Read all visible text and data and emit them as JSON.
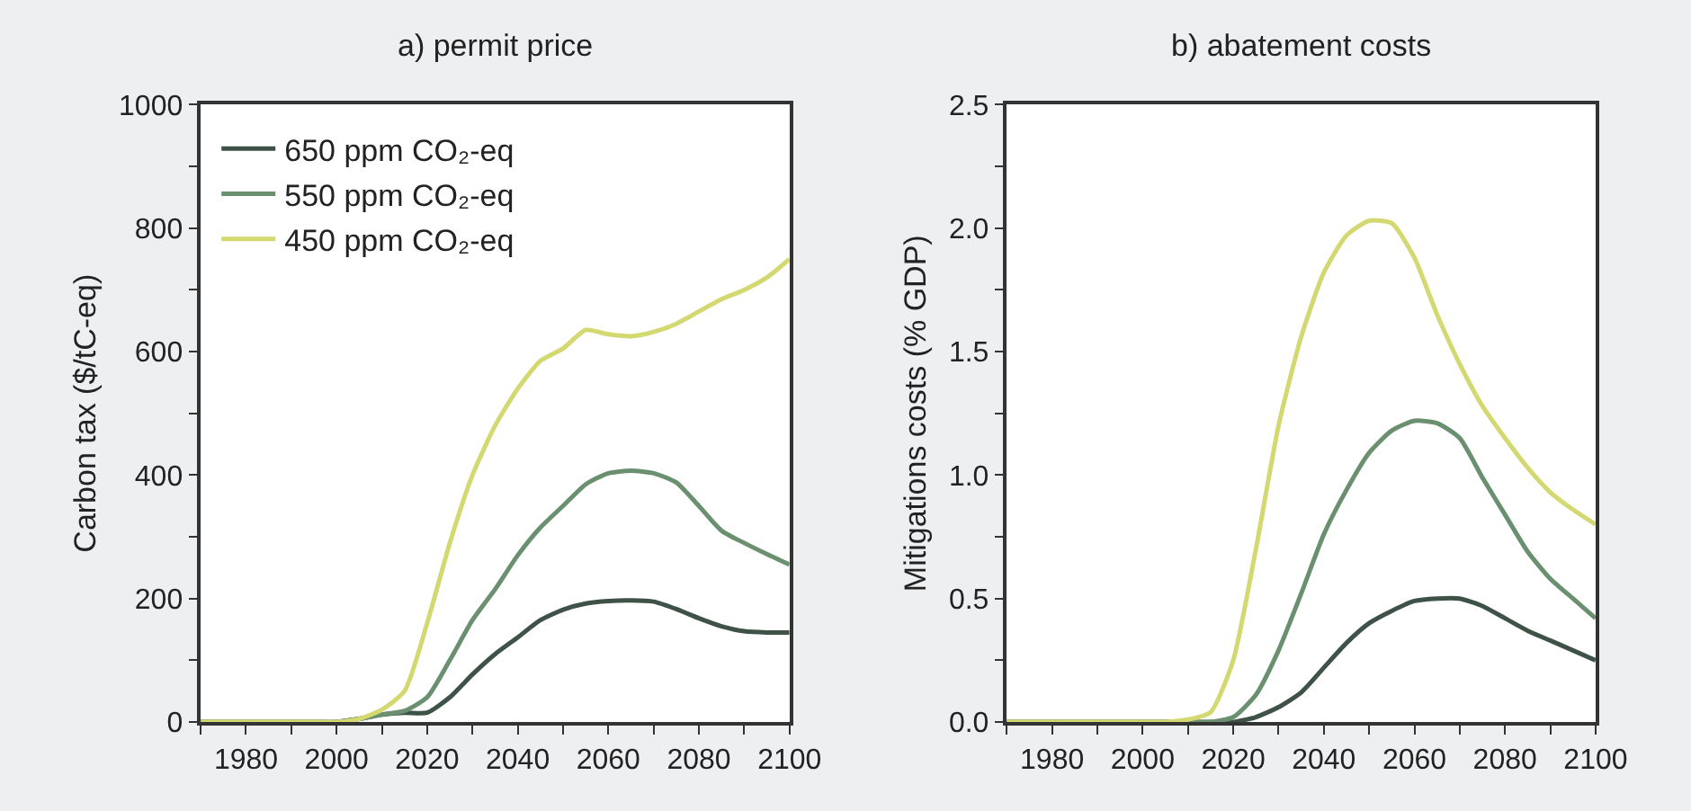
{
  "chart_data": [
    {
      "type": "line",
      "title": "a) permit price",
      "ylabel": "Carbon tax ($/tC-eq)",
      "legend": "top left",
      "grid": false,
      "marker": "none",
      "line_style": "solid",
      "x": [
        1970,
        1975,
        1980,
        1985,
        1990,
        1995,
        2000,
        2005,
        2010,
        2015,
        2020,
        2025,
        2030,
        2035,
        2040,
        2045,
        2050,
        2055,
        2060,
        2065,
        2070,
        2075,
        2080,
        2085,
        2090,
        2095,
        2100
      ],
      "xlim": [
        1970,
        2100
      ],
      "xticks": [
        {
          "value": 1970,
          "label": null
        },
        1980,
        {
          "value": 1990,
          "label": null
        },
        2000,
        {
          "value": 2010,
          "label": null
        },
        2020,
        {
          "value": 2030,
          "label": null
        },
        2040,
        {
          "value": 2050,
          "label": null
        },
        2060,
        {
          "value": 2070,
          "label": null
        },
        2080,
        {
          "value": 2090,
          "label": null
        },
        2100
      ],
      "ylim": [
        0,
        1000
      ],
      "yticks": [
        0,
        {
          "value": 100,
          "label": null
        },
        200,
        {
          "value": 300,
          "label": null
        },
        400,
        {
          "value": 500,
          "label": null
        },
        600,
        {
          "value": 700,
          "label": null
        },
        800,
        {
          "value": 900,
          "label": null
        },
        1000
      ],
      "series": [
        {
          "name": "650 ppm CO₂-eq",
          "color": "#3f5248",
          "values": [
            0,
            0,
            0,
            0,
            0,
            0,
            0,
            5,
            12,
            15,
            15,
            40,
            77,
            110,
            137,
            165,
            182,
            192,
            196,
            197,
            195,
            183,
            168,
            155,
            147,
            145,
            145
          ]
        },
        {
          "name": "550 ppm CO₂-eq",
          "color": "#6a9070",
          "values": [
            0,
            0,
            0,
            0,
            0,
            0,
            0,
            5,
            12,
            18,
            40,
            100,
            165,
            215,
            270,
            315,
            350,
            385,
            403,
            407,
            403,
            388,
            350,
            310,
            290,
            272,
            255
          ]
        },
        {
          "name": "450 ppm CO₂-eq",
          "color": "#d4d870",
          "values": [
            0,
            0,
            0,
            0,
            0,
            0,
            0,
            5,
            20,
            50,
            160,
            290,
            400,
            480,
            540,
            585,
            605,
            635,
            628,
            625,
            632,
            645,
            665,
            685,
            700,
            720,
            750
          ]
        }
      ]
    },
    {
      "type": "line",
      "title": "b) abatement costs",
      "ylabel": "Mitigations costs (% GDP)",
      "legend": false,
      "grid": false,
      "marker": "none",
      "line_style": "solid",
      "x": [
        1970,
        1975,
        1980,
        1985,
        1990,
        1995,
        2000,
        2005,
        2010,
        2015,
        2020,
        2025,
        2030,
        2035,
        2040,
        2045,
        2050,
        2055,
        2060,
        2065,
        2070,
        2075,
        2080,
        2085,
        2090,
        2095,
        2100
      ],
      "xlim": [
        1970,
        2100
      ],
      "xticks": [
        {
          "value": 1970,
          "label": null
        },
        1980,
        {
          "value": 1990,
          "label": null
        },
        2000,
        {
          "value": 2010,
          "label": null
        },
        2020,
        {
          "value": 2030,
          "label": null
        },
        2040,
        {
          "value": 2050,
          "label": null
        },
        2060,
        {
          "value": 2070,
          "label": null
        },
        2080,
        {
          "value": 2090,
          "label": null
        },
        2100
      ],
      "ylim": [
        0,
        2.5
      ],
      "yticks": [
        {
          "value": 0,
          "label": "0.0"
        },
        {
          "value": 0.25,
          "label": null
        },
        0.5,
        {
          "value": 0.75,
          "label": null
        },
        {
          "value": 1,
          "label": "1.0"
        },
        {
          "value": 1.25,
          "label": null
        },
        1.5,
        {
          "value": 1.75,
          "label": null
        },
        {
          "value": 2,
          "label": "2.0"
        },
        {
          "value": 2.25,
          "label": null
        },
        2.5
      ],
      "series": [
        {
          "color": "#3f5248",
          "values": [
            0,
            0,
            0,
            0,
            0,
            0,
            0,
            0,
            0,
            0,
            0,
            0.02,
            0.06,
            0.12,
            0.22,
            0.32,
            0.4,
            0.45,
            0.49,
            0.5,
            0.5,
            0.47,
            0.42,
            0.37,
            0.33,
            0.29,
            0.25
          ]
        },
        {
          "color": "#6a9070",
          "values": [
            0,
            0,
            0,
            0,
            0,
            0,
            0,
            0,
            0,
            0,
            0.02,
            0.11,
            0.29,
            0.52,
            0.76,
            0.94,
            1.09,
            1.18,
            1.22,
            1.21,
            1.15,
            0.99,
            0.84,
            0.69,
            0.58,
            0.5,
            0.42
          ]
        },
        {
          "color": "#d4d870",
          "values": [
            0,
            0,
            0,
            0,
            0,
            0,
            0,
            0,
            0.01,
            0.04,
            0.25,
            0.7,
            1.2,
            1.56,
            1.82,
            1.97,
            2.03,
            2.02,
            1.88,
            1.65,
            1.45,
            1.28,
            1.15,
            1.03,
            0.93,
            0.86,
            0.8
          ]
        }
      ]
    }
  ]
}
